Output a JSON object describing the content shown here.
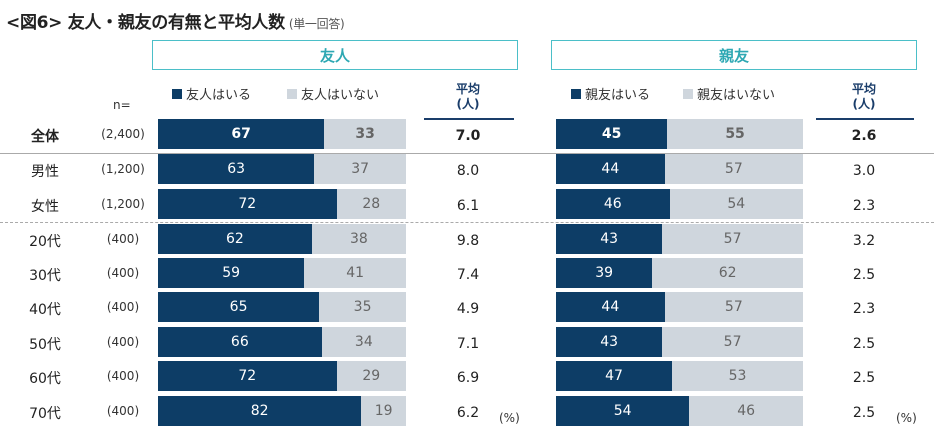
{
  "title": "<図6> 友人・親友の有無と平均人数",
  "subtitle": "(単一回答)",
  "n_label": "n=",
  "unit_label": "(%)",
  "avg_header": "平均\n(人)",
  "colors": {
    "have": "#0d3d66",
    "not": "#cfd6dd",
    "header_border": "#4bbfc8",
    "header_text": "#2ea8b3"
  },
  "chart_data": [
    {
      "type": "bar",
      "orientation": "horizontal-stacked",
      "title": "友人",
      "series": [
        {
          "name": "友人はいる",
          "values": [
            67,
            63,
            72,
            62,
            59,
            65,
            66,
            72,
            82
          ]
        },
        {
          "name": "友人はいない",
          "values": [
            33,
            37,
            28,
            38,
            41,
            35,
            34,
            29,
            19
          ]
        }
      ],
      "averages": [
        "7.0",
        "8.0",
        "6.1",
        "9.8",
        "7.4",
        "4.9",
        "7.1",
        "6.9",
        "6.2"
      ],
      "xlim": [
        0,
        100
      ],
      "unit": "%"
    },
    {
      "type": "bar",
      "orientation": "horizontal-stacked",
      "title": "親友",
      "series": [
        {
          "name": "親友はいる",
          "values": [
            45,
            44,
            46,
            43,
            39,
            44,
            43,
            47,
            54
          ]
        },
        {
          "name": "親友はいない",
          "values": [
            55,
            57,
            54,
            57,
            62,
            57,
            57,
            53,
            46
          ]
        }
      ],
      "averages": [
        "2.6",
        "3.0",
        "2.3",
        "3.2",
        "2.5",
        "2.3",
        "2.5",
        "2.5",
        "2.5"
      ],
      "xlim": [
        0,
        100
      ],
      "unit": "%"
    }
  ],
  "rows": [
    {
      "label": "全体",
      "n": "(2,400)"
    },
    {
      "label": "男性",
      "n": "(1,200)"
    },
    {
      "label": "女性",
      "n": "(1,200)"
    },
    {
      "label": "20代",
      "n": "(400)"
    },
    {
      "label": "30代",
      "n": "(400)"
    },
    {
      "label": "40代",
      "n": "(400)"
    },
    {
      "label": "50代",
      "n": "(400)"
    },
    {
      "label": "60代",
      "n": "(400)"
    },
    {
      "label": "70代",
      "n": "(400)"
    }
  ]
}
